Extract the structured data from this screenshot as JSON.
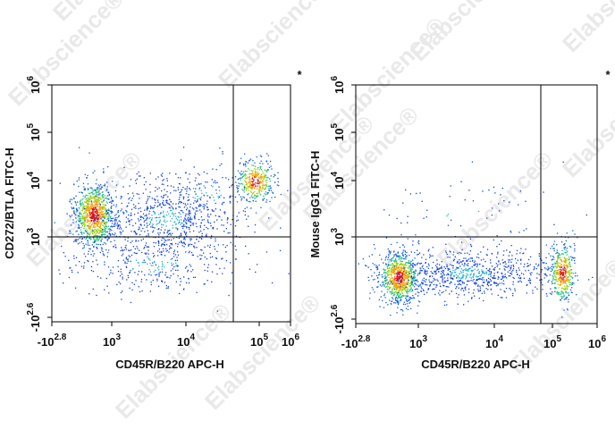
{
  "watermark": "Elabscience®",
  "panels": [
    {
      "y_label": "CD272/BTLA FITC-H",
      "x_label": "CD45R/B220 APC-H",
      "marker": "*",
      "x_ticks": [
        {
          "base": "-10",
          "exp": "2.8"
        },
        {
          "base": "10",
          "exp": "3"
        },
        {
          "base": "10",
          "exp": "4"
        },
        {
          "base": "10",
          "exp": "5"
        },
        {
          "base": "10",
          "exp": "6"
        }
      ],
      "y_ticks": [
        {
          "base": "-10",
          "exp": "2.6"
        },
        {
          "base": "10",
          "exp": "3"
        },
        {
          "base": "10",
          "exp": "4"
        },
        {
          "base": "10",
          "exp": "5"
        },
        {
          "base": "10",
          "exp": "6"
        }
      ]
    },
    {
      "y_label": "Mouse IgG1 FITC-H",
      "x_label": "CD45R/B220 APC-H",
      "marker": "*",
      "x_ticks": [
        {
          "base": "-10",
          "exp": "2.8"
        },
        {
          "base": "10",
          "exp": "3"
        },
        {
          "base": "10",
          "exp": "4"
        },
        {
          "base": "10",
          "exp": "5"
        },
        {
          "base": "10",
          "exp": "6"
        }
      ],
      "y_ticks": [
        {
          "base": "-10",
          "exp": "2.6"
        },
        {
          "base": "10",
          "exp": "3"
        },
        {
          "base": "10",
          "exp": "4"
        },
        {
          "base": "10",
          "exp": "5"
        },
        {
          "base": "10",
          "exp": "6"
        }
      ]
    }
  ]
}
